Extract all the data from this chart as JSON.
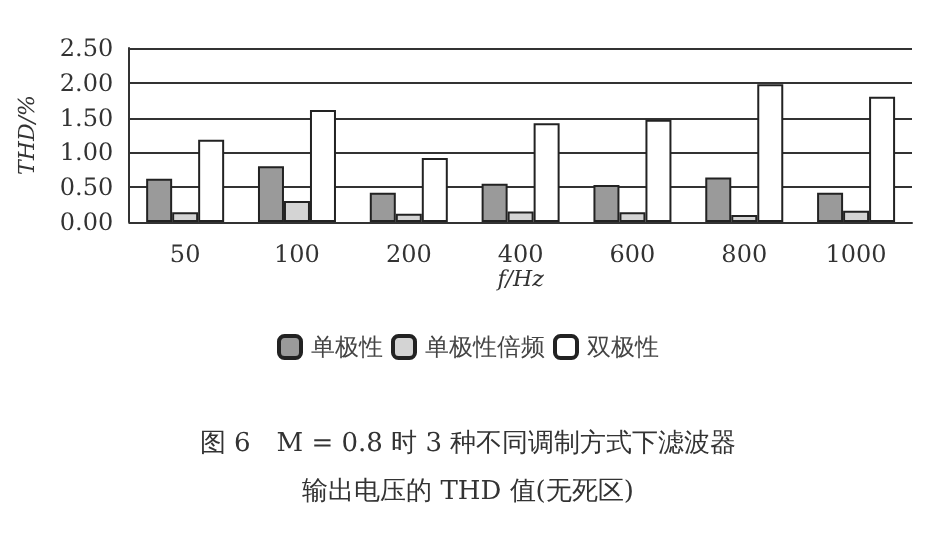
{
  "chart_data": {
    "type": "bar",
    "title": "图 6　M = 0.8 时 3 种不同调制方式下滤波器输出电压的 THD 值(无死区)",
    "xlabel": "f/Hz",
    "ylabel": "THD/%",
    "categories": [
      "50",
      "100",
      "200",
      "400",
      "600",
      "800",
      "1000"
    ],
    "series": [
      {
        "name": "单极性",
        "color": "#9a9a9a",
        "values": [
          0.62,
          0.8,
          0.42,
          0.55,
          0.53,
          0.64,
          0.42
        ]
      },
      {
        "name": "单极性倍频",
        "color": "#d4d4d4",
        "values": [
          0.14,
          0.3,
          0.12,
          0.15,
          0.14,
          0.1,
          0.16
        ]
      },
      {
        "name": "双极性",
        "color": "#ffffff",
        "values": [
          1.18,
          1.61,
          0.92,
          1.42,
          1.47,
          1.98,
          1.8
        ]
      }
    ],
    "ylim": [
      0,
      2.5
    ],
    "yticks": [
      {
        "value": 0,
        "label": "0.00"
      },
      {
        "value": 0.5,
        "label": "0.50"
      },
      {
        "value": 1,
        "label": "1.00"
      },
      {
        "value": 1.5,
        "label": "1.50"
      },
      {
        "value": 2,
        "label": "2.00"
      },
      {
        "value": 2.5,
        "label": "2.50"
      }
    ],
    "grid": "y",
    "legend": "bottom"
  }
}
